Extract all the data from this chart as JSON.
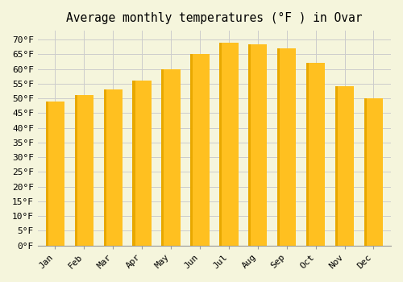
{
  "title": "Average monthly temperatures (°F ) in Ovar",
  "months": [
    "Jan",
    "Feb",
    "Mar",
    "Apr",
    "May",
    "Jun",
    "Jul",
    "Aug",
    "Sep",
    "Oct",
    "Nov",
    "Dec"
  ],
  "values": [
    49,
    51,
    53,
    56,
    60,
    65,
    69,
    68.5,
    67,
    62,
    54,
    50
  ],
  "bar_color": "#FFC020",
  "bar_edge_color": "#E8A800",
  "ylim": [
    0,
    73
  ],
  "background_color": "#F5F5DC",
  "grid_color": "#CCCCCC",
  "title_fontsize": 10.5,
  "tick_fontsize": 8
}
